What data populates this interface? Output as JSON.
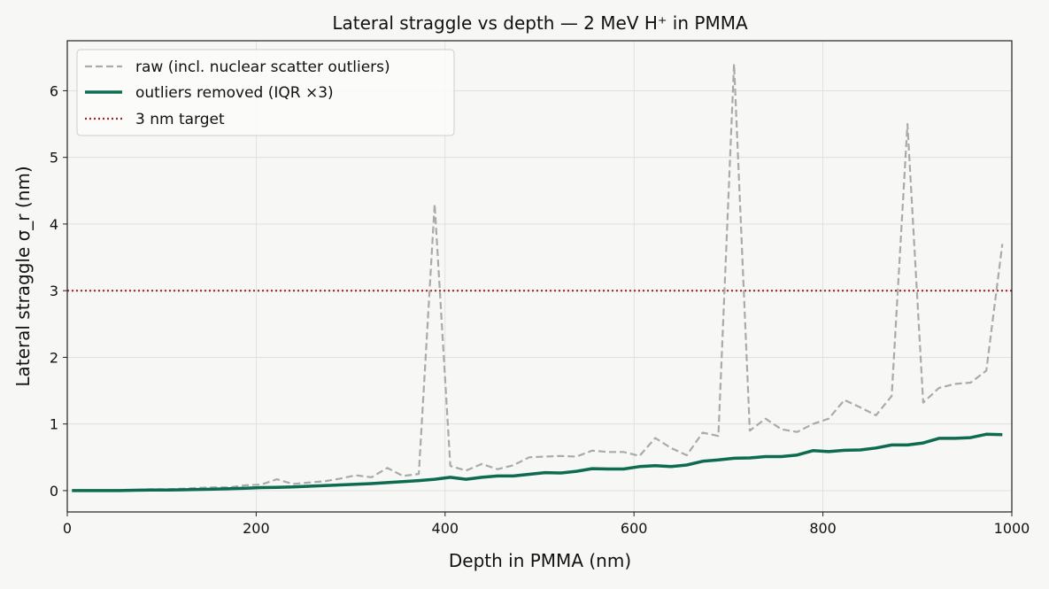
{
  "chart_data": {
    "type": "line",
    "title": "Lateral straggle vs depth — 2 MeV H⁺ in PMMA",
    "xlabel": "Depth in PMMA (nm)",
    "ylabel": "Lateral straggle σ_r (nm)",
    "xlim": [
      0,
      1000
    ],
    "ylim": [
      -0.32,
      6.75
    ],
    "xticks": [
      0,
      200,
      400,
      600,
      800,
      1000
    ],
    "yticks": [
      0,
      1,
      2,
      3,
      4,
      5,
      6
    ],
    "grid": true,
    "legend_position": "top-left",
    "x": [
      5,
      21.7,
      38.4,
      55.1,
      71.8,
      88.4,
      105.1,
      121.8,
      138.5,
      155.2,
      171.9,
      188.6,
      205.3,
      222,
      238.6,
      255.3,
      272,
      288.7,
      305.4,
      322.1,
      338.8,
      355.5,
      372.2,
      388.9,
      405.5,
      422.2,
      438.9,
      455.6,
      472.3,
      489,
      505.7,
      522.4,
      539.1,
      555.7,
      572.4,
      589.1,
      605.8,
      622.5,
      639.2,
      655.9,
      672.6,
      689.3,
      705.9,
      722.6,
      739.3,
      756,
      772.7,
      789.4,
      806.1,
      822.8,
      839.5,
      856.1,
      872.8,
      889.5,
      906.2,
      922.9,
      939.6,
      956.3,
      973,
      990
    ],
    "series": [
      {
        "name": "raw (incl. nuclear scatter outliers)",
        "color": "#aaaaaa",
        "style": "dashed",
        "values": [
          0,
          0,
          0,
          0,
          0.01,
          0.02,
          0.02,
          0.03,
          0.04,
          0.05,
          0.05,
          0.08,
          0.09,
          0.17,
          0.1,
          0.12,
          0.14,
          0.18,
          0.23,
          0.2,
          0.34,
          0.22,
          0.25,
          4.3,
          0.37,
          0.3,
          0.4,
          0.32,
          0.38,
          0.5,
          0.51,
          0.52,
          0.51,
          0.6,
          0.58,
          0.58,
          0.52,
          0.79,
          0.64,
          0.53,
          0.87,
          0.82,
          6.4,
          0.9,
          1.08,
          0.92,
          0.88,
          1.0,
          1.08,
          1.36,
          1.25,
          1.13,
          1.42,
          5.5,
          1.32,
          1.54,
          1.6,
          1.62,
          1.8,
          3.7
        ]
      },
      {
        "name": "outliers removed (IQR ×3)",
        "color": "#0e6b50",
        "style": "solid",
        "values": [
          0,
          0,
          0,
          0,
          0.005,
          0.008,
          0.01,
          0.012,
          0.018,
          0.022,
          0.028,
          0.035,
          0.045,
          0.05,
          0.055,
          0.065,
          0.075,
          0.085,
          0.095,
          0.105,
          0.12,
          0.135,
          0.15,
          0.17,
          0.2,
          0.17,
          0.2,
          0.22,
          0.22,
          0.245,
          0.27,
          0.265,
          0.29,
          0.33,
          0.325,
          0.325,
          0.36,
          0.375,
          0.36,
          0.385,
          0.44,
          0.46,
          0.485,
          0.49,
          0.51,
          0.51,
          0.535,
          0.6,
          0.585,
          0.605,
          0.61,
          0.64,
          0.685,
          0.685,
          0.715,
          0.785,
          0.785,
          0.795,
          0.845,
          0.84
        ]
      }
    ],
    "hlines": [
      {
        "name": "3 nm target",
        "y": 3,
        "color": "#a0282d",
        "style": "dotted"
      }
    ]
  }
}
